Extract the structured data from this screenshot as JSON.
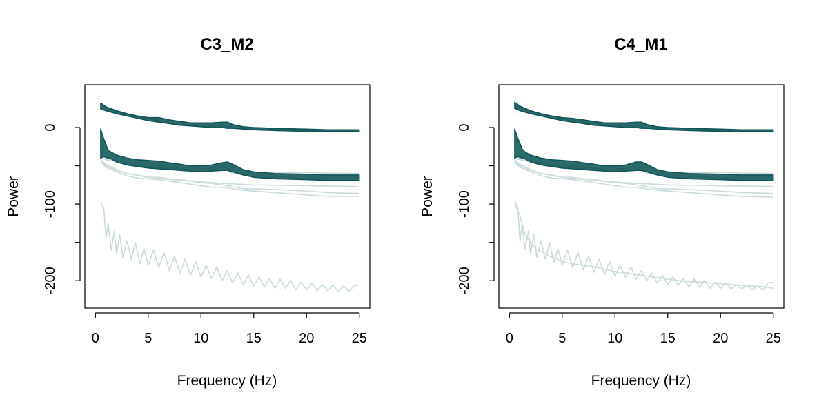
{
  "colors": {
    "main": "#0f5457",
    "faint": "#c9dbdb",
    "axis": "#000000"
  },
  "chart_data": [
    {
      "type": "line",
      "title": "C3_M2",
      "xlabel": "Frequency (Hz)",
      "ylabel": "Power",
      "xlim": [
        0,
        25
      ],
      "ylim": [
        -225,
        45
      ],
      "xticks": [
        0,
        5,
        10,
        15,
        20,
        25
      ],
      "yticks": [
        0,
        -100,
        -200
      ],
      "grid": false,
      "legend": "none",
      "bands": [
        {
          "role": "upper-dense",
          "x": [
            0.5,
            1,
            2,
            3,
            4,
            5,
            6,
            7,
            8,
            9,
            10,
            11,
            12,
            12.5,
            13,
            14,
            15,
            17,
            20,
            22,
            25
          ],
          "upper": [
            32,
            27,
            22,
            18,
            15,
            13,
            13,
            10,
            8,
            6,
            6,
            6,
            7,
            7,
            4,
            1,
            0,
            -1,
            -2,
            -3,
            -3
          ],
          "lower": [
            24,
            22,
            18,
            15,
            12,
            9,
            7,
            5,
            3,
            2,
            1,
            0,
            0,
            -1,
            -1,
            -2,
            -3,
            -4,
            -5,
            -5,
            -5
          ]
        },
        {
          "role": "lower-dense",
          "x": [
            0.5,
            0.8,
            1,
            1.2,
            1.5,
            2,
            3,
            4,
            5,
            6,
            7,
            8,
            9,
            10,
            11,
            12,
            12.5,
            13,
            14,
            15,
            17,
            20,
            22,
            25
          ],
          "upper": [
            -2,
            -15,
            -22,
            -30,
            -32,
            -36,
            -40,
            -42,
            -43,
            -44,
            -46,
            -48,
            -50,
            -50,
            -49,
            -46,
            -45,
            -48,
            -55,
            -58,
            -60,
            -61,
            -62,
            -62
          ],
          "lower": [
            -40,
            -38,
            -39,
            -40,
            -41,
            -45,
            -49,
            -51,
            -53,
            -54,
            -55,
            -56,
            -57,
            -58,
            -57,
            -56,
            -56,
            -58,
            -62,
            -65,
            -67,
            -68,
            -69,
            -69
          ]
        }
      ],
      "series": [
        {
          "x": [
            0.5,
            1,
            2,
            3,
            4,
            5,
            6,
            7,
            8,
            9,
            10,
            11,
            12,
            12.5,
            13,
            14,
            15,
            17,
            20,
            22,
            25
          ],
          "y": [
            30,
            26,
            21,
            18,
            15,
            12,
            12,
            9,
            7,
            5,
            5,
            5,
            6,
            6,
            3,
            1,
            -1,
            -2,
            -3,
            -4,
            -4
          ]
        },
        {
          "x": [
            0.5,
            1,
            2,
            3,
            4,
            5,
            6,
            7,
            8,
            9,
            10,
            11,
            12,
            13,
            15,
            20,
            25
          ],
          "y": [
            26,
            23,
            19,
            16,
            13,
            11,
            9,
            7,
            5,
            4,
            3,
            2,
            2,
            0,
            -2,
            -4,
            -5
          ]
        },
        {
          "x": [
            0.5,
            1,
            2,
            3,
            4,
            5,
            6,
            7,
            8,
            9,
            10,
            11,
            12,
            13,
            15,
            20,
            25
          ],
          "y": [
            -38,
            -40,
            -44,
            -46,
            -48,
            -50,
            -50,
            -52,
            -53,
            -54,
            -55,
            -53,
            -52,
            -55,
            -58,
            -59,
            -60
          ]
        },
        {
          "x": [
            0.5,
            1,
            2,
            3,
            5,
            8,
            10,
            12,
            12.5,
            13,
            15,
            20,
            25
          ],
          "y": [
            -40,
            -42,
            -45,
            -48,
            -52,
            -54,
            -55,
            -55,
            -56,
            -60,
            -63,
            -66,
            -66
          ]
        },
        {
          "x": [
            0.5,
            1,
            2,
            3,
            4,
            5,
            6,
            7,
            8,
            9,
            10,
            11,
            12,
            13,
            14,
            15,
            17,
            20,
            22,
            25
          ],
          "y": [
            -42,
            -48,
            -55,
            -60,
            -62,
            -65,
            -65,
            -67,
            -68,
            -70,
            -72,
            -73,
            -75,
            -77,
            -80,
            -80,
            -81,
            -83,
            -85,
            -86
          ]
        },
        {
          "x": [
            0.5,
            1,
            2,
            3,
            4,
            5,
            6,
            7,
            8,
            9,
            10,
            11,
            12,
            13,
            14,
            15,
            17,
            20,
            22,
            25
          ],
          "y": [
            -45,
            -52,
            -58,
            -63,
            -66,
            -67,
            -68,
            -70,
            -72,
            -74,
            -76,
            -78,
            -78,
            -80,
            -82,
            -83,
            -85,
            -88,
            -90,
            -90
          ]
        },
        {
          "x": [
            0.5,
            1,
            2,
            3,
            5,
            8,
            10,
            12,
            15,
            20,
            25
          ],
          "y": [
            -44,
            -50,
            -56,
            -60,
            -65,
            -69,
            -71,
            -73,
            -75,
            -76,
            -77
          ]
        },
        {
          "x": [
            0.5,
            0.8,
            1,
            1.2,
            1.5,
            1.8,
            2,
            2.3,
            2.6,
            3,
            3.4,
            3.8,
            4.2,
            4.6,
            5,
            5.5,
            6,
            6.5,
            7,
            7.5,
            8,
            8.5,
            9,
            9.5,
            10,
            10.5,
            11,
            11.5,
            12,
            12.5,
            13,
            13.5,
            14,
            14.5,
            15,
            15.5,
            16,
            16.5,
            17,
            17.5,
            18,
            18.5,
            19,
            19.5,
            20,
            20.5,
            21,
            21.5,
            22,
            22.5,
            23,
            23.5,
            24,
            24.5,
            25
          ],
          "y": [
            -98,
            -105,
            -145,
            -125,
            -160,
            -135,
            -165,
            -140,
            -170,
            -148,
            -172,
            -150,
            -178,
            -158,
            -180,
            -160,
            -183,
            -163,
            -187,
            -168,
            -190,
            -172,
            -193,
            -175,
            -195,
            -180,
            -197,
            -182,
            -200,
            -187,
            -203,
            -190,
            -205,
            -193,
            -207,
            -195,
            -208,
            -197,
            -210,
            -198,
            -210,
            -200,
            -212,
            -202,
            -212,
            -203,
            -213,
            -205,
            -213,
            -206,
            -214,
            -207,
            -214,
            -207,
            -205
          ]
        }
      ]
    },
    {
      "type": "line",
      "title": "C4_M1",
      "xlabel": "Frequency (Hz)",
      "ylabel": "Power",
      "xlim": [
        0,
        25
      ],
      "ylim": [
        -225,
        45
      ],
      "xticks": [
        0,
        5,
        10,
        15,
        20,
        25
      ],
      "yticks": [
        0,
        -100,
        -200
      ],
      "grid": false,
      "legend": "none",
      "bands": [
        {
          "role": "upper-dense",
          "x": [
            0.5,
            1,
            2,
            3,
            4,
            5,
            6,
            7,
            8,
            9,
            10,
            11,
            12,
            12.5,
            13,
            14,
            15,
            17,
            20,
            22,
            25
          ],
          "upper": [
            33,
            28,
            22,
            18,
            15,
            13,
            12,
            10,
            8,
            6,
            6,
            6,
            7,
            7,
            4,
            1,
            0,
            -1,
            -2,
            -3,
            -3
          ],
          "lower": [
            25,
            22,
            18,
            15,
            12,
            9,
            7,
            5,
            3,
            2,
            1,
            0,
            0,
            -1,
            -1,
            -2,
            -3,
            -4,
            -5,
            -5,
            -5
          ]
        },
        {
          "role": "lower-dense",
          "x": [
            0.5,
            0.8,
            1,
            1.2,
            1.5,
            2,
            3,
            4,
            5,
            6,
            7,
            8,
            9,
            10,
            11,
            12,
            12.5,
            13,
            14,
            15,
            17,
            20,
            22,
            25
          ],
          "upper": [
            -2,
            -14,
            -21,
            -28,
            -32,
            -36,
            -40,
            -42,
            -43,
            -44,
            -46,
            -48,
            -50,
            -50,
            -49,
            -45,
            -45,
            -48,
            -55,
            -58,
            -60,
            -61,
            -62,
            -62
          ],
          "lower": [
            -40,
            -38,
            -39,
            -40,
            -41,
            -45,
            -49,
            -51,
            -53,
            -54,
            -55,
            -56,
            -57,
            -58,
            -57,
            -56,
            -56,
            -58,
            -62,
            -65,
            -67,
            -68,
            -69,
            -69
          ]
        }
      ],
      "series": [
        {
          "x": [
            0.5,
            1,
            2,
            3,
            4,
            5,
            6,
            7,
            8,
            9,
            10,
            11,
            12,
            12.5,
            13,
            14,
            15,
            17,
            20,
            22,
            25
          ],
          "y": [
            30,
            26,
            21,
            18,
            15,
            12,
            11,
            9,
            7,
            5,
            5,
            5,
            6,
            6,
            3,
            1,
            -1,
            -2,
            -3,
            -4,
            -4
          ]
        },
        {
          "x": [
            0.5,
            1,
            2,
            3,
            4,
            5,
            6,
            7,
            8,
            9,
            10,
            11,
            12,
            13,
            15,
            20,
            25
          ],
          "y": [
            27,
            23,
            19,
            16,
            13,
            11,
            9,
            7,
            5,
            4,
            3,
            2,
            2,
            0,
            -2,
            -4,
            -5
          ]
        },
        {
          "x": [
            0.5,
            1,
            2,
            3,
            4,
            5,
            6,
            7,
            8,
            9,
            10,
            11,
            12,
            13,
            15,
            20,
            25
          ],
          "y": [
            -38,
            -40,
            -44,
            -46,
            -48,
            -50,
            -50,
            -52,
            -53,
            -54,
            -55,
            -53,
            -52,
            -55,
            -58,
            -59,
            -60
          ]
        },
        {
          "x": [
            0.5,
            1,
            2,
            3,
            5,
            8,
            10,
            12,
            12.5,
            13,
            15,
            20,
            25
          ],
          "y": [
            -40,
            -42,
            -45,
            -48,
            -52,
            -54,
            -55,
            -55,
            -56,
            -60,
            -63,
            -66,
            -66
          ]
        },
        {
          "x": [
            0.5,
            1,
            2,
            3,
            4,
            5,
            6,
            7,
            8,
            9,
            10,
            11,
            12,
            13,
            14,
            15,
            17,
            20,
            22,
            25
          ],
          "y": [
            -42,
            -48,
            -55,
            -60,
            -62,
            -65,
            -65,
            -67,
            -68,
            -70,
            -72,
            -73,
            -75,
            -77,
            -80,
            -80,
            -81,
            -83,
            -85,
            -86
          ]
        },
        {
          "x": [
            0.5,
            1,
            2,
            3,
            4,
            5,
            6,
            7,
            8,
            9,
            10,
            11,
            12,
            13,
            14,
            15,
            17,
            20,
            22,
            25
          ],
          "y": [
            -45,
            -52,
            -58,
            -63,
            -66,
            -67,
            -68,
            -70,
            -72,
            -74,
            -76,
            -78,
            -78,
            -80,
            -82,
            -83,
            -85,
            -88,
            -90,
            -91
          ]
        },
        {
          "x": [
            0.5,
            1,
            2,
            3,
            5,
            8,
            10,
            12,
            15,
            20,
            25
          ],
          "y": [
            -44,
            -50,
            -56,
            -60,
            -65,
            -69,
            -71,
            -73,
            -75,
            -76,
            -77
          ]
        },
        {
          "x": [
            0.5,
            0.8,
            1,
            1.2,
            1.5,
            1.8,
            2,
            2.3,
            2.6,
            3,
            3.4,
            3.8,
            4.2,
            4.6,
            5,
            5.5,
            6,
            6.5,
            7,
            7.5,
            8,
            8.5,
            9,
            9.5,
            10,
            10.5,
            11,
            11.5,
            12,
            12.5,
            13,
            13.5,
            14,
            14.5,
            15,
            15.5,
            16,
            16.5,
            17,
            17.5,
            18,
            18.5,
            19,
            19.5,
            20,
            20.5,
            21,
            21.5,
            22,
            22.5,
            23,
            23.5,
            24,
            24.5,
            25
          ],
          "y": [
            -95,
            -105,
            -148,
            -128,
            -158,
            -135,
            -165,
            -140,
            -170,
            -148,
            -172,
            -150,
            -176,
            -158,
            -180,
            -160,
            -183,
            -163,
            -186,
            -168,
            -189,
            -172,
            -192,
            -175,
            -194,
            -180,
            -196,
            -182,
            -198,
            -187,
            -200,
            -190,
            -203,
            -193,
            -205,
            -195,
            -206,
            -197,
            -208,
            -198,
            -208,
            -200,
            -210,
            -202,
            -210,
            -203,
            -211,
            -205,
            -211,
            -206,
            -212,
            -207,
            -212,
            -203,
            -202
          ]
        },
        {
          "x": [
            0.5,
            1,
            1.5,
            2,
            2.6,
            3,
            3.8,
            4.6,
            5,
            6,
            7,
            8,
            9,
            10,
            11,
            12,
            13,
            14,
            15,
            16,
            17,
            18,
            19,
            20,
            21,
            22,
            23,
            24,
            25
          ],
          "y": [
            -100,
            -115,
            -140,
            -150,
            -160,
            -162,
            -168,
            -172,
            -175,
            -178,
            -180,
            -182,
            -185,
            -188,
            -190,
            -192,
            -194,
            -196,
            -198,
            -200,
            -201,
            -202,
            -203,
            -204,
            -205,
            -206,
            -207,
            -208,
            -210
          ]
        }
      ]
    }
  ]
}
